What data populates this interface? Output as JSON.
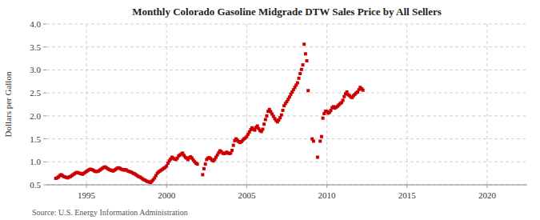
{
  "chart_data": {
    "type": "scatter",
    "title": "Monthly Colorado Gasoline Midgrade DTW Sales Price by All Sellers",
    "ylabel": "Dollars per Gallon",
    "annotation": "Source: U.S. Energy Information Administration",
    "color": "#cc0000",
    "marker": "square",
    "grid": true,
    "xlim": [
      1992.5,
      2022.5
    ],
    "ylim": [
      0.5,
      4.0
    ],
    "xticks": [
      1995,
      2000,
      2005,
      2010,
      2015,
      2020
    ],
    "yticks": [
      0.5,
      {
        "value": 1.0,
        "label": "1.0"
      },
      1.5,
      {
        "value": 2.0,
        "label": "2.0"
      },
      2.5,
      {
        "value": 3.0,
        "label": "3.0"
      },
      3.5,
      {
        "value": 4.0,
        "label": "4.0"
      }
    ],
    "x": [
      1993.083,
      1993.167,
      1993.25,
      1993.333,
      1993.417,
      1993.5,
      1993.583,
      1993.667,
      1993.75,
      1993.833,
      1993.917,
      1994.0,
      1994.083,
      1994.167,
      1994.25,
      1994.333,
      1994.417,
      1994.5,
      1994.583,
      1994.667,
      1994.75,
      1994.833,
      1994.917,
      1995.0,
      1995.083,
      1995.167,
      1995.25,
      1995.333,
      1995.417,
      1995.5,
      1995.583,
      1995.667,
      1995.75,
      1995.833,
      1995.917,
      1996.0,
      1996.083,
      1996.167,
      1996.25,
      1996.333,
      1996.417,
      1996.5,
      1996.583,
      1996.667,
      1996.75,
      1996.833,
      1996.917,
      1997.0,
      1997.083,
      1997.167,
      1997.25,
      1997.333,
      1997.417,
      1997.5,
      1997.583,
      1997.667,
      1997.75,
      1997.833,
      1997.917,
      1998.0,
      1998.083,
      1998.167,
      1998.25,
      1998.333,
      1998.417,
      1998.5,
      1998.583,
      1998.667,
      1998.75,
      1998.833,
      1998.917,
      1999.0,
      1999.083,
      1999.167,
      1999.25,
      1999.333,
      1999.417,
      1999.5,
      1999.583,
      1999.667,
      1999.75,
      1999.833,
      1999.917,
      2000.0,
      2000.083,
      2000.167,
      2000.25,
      2000.333,
      2000.417,
      2000.5,
      2000.583,
      2000.667,
      2000.75,
      2000.833,
      2000.917,
      2001.0,
      2001.083,
      2001.167,
      2001.25,
      2001.333,
      2001.417,
      2001.5,
      2001.583,
      2001.667,
      2001.75,
      2001.833,
      2001.917,
      2002.25,
      2002.333,
      2002.417,
      2002.5,
      2002.583,
      2002.667,
      2002.75,
      2002.833,
      2002.917,
      2003.0,
      2003.083,
      2003.167,
      2003.25,
      2003.333,
      2003.417,
      2003.5,
      2003.583,
      2003.667,
      2003.75,
      2003.833,
      2003.917,
      2004.0,
      2004.083,
      2004.167,
      2004.25,
      2004.333,
      2004.417,
      2004.5,
      2004.583,
      2004.667,
      2004.75,
      2004.833,
      2004.917,
      2005.0,
      2005.083,
      2005.167,
      2005.25,
      2005.333,
      2005.417,
      2005.5,
      2005.583,
      2005.667,
      2005.75,
      2005.833,
      2005.917,
      2006.0,
      2006.083,
      2006.167,
      2006.25,
      2006.333,
      2006.417,
      2006.5,
      2006.583,
      2006.667,
      2006.75,
      2006.833,
      2006.917,
      2007.0,
      2007.083,
      2007.167,
      2007.25,
      2007.333,
      2007.417,
      2007.5,
      2007.583,
      2007.667,
      2007.75,
      2007.833,
      2007.917,
      2008.0,
      2008.083,
      2008.167,
      2008.25,
      2008.333,
      2008.417,
      2008.5,
      2008.583,
      2008.667,
      2008.75,
      2008.833,
      2009.083,
      2009.167,
      2009.417,
      2009.583,
      2009.667,
      2009.75,
      2009.833,
      2009.917,
      2010.0,
      2010.083,
      2010.167,
      2010.25,
      2010.333,
      2010.417,
      2010.5,
      2010.583,
      2010.667,
      2010.75,
      2010.833,
      2010.917,
      2011.0,
      2011.083,
      2011.167,
      2011.25,
      2011.333,
      2011.417,
      2011.5,
      2011.583,
      2011.667,
      2011.75,
      2011.833,
      2011.917,
      2012.0,
      2012.083,
      2012.167,
      2012.25
    ],
    "values": [
      0.64,
      0.65,
      0.67,
      0.7,
      0.72,
      0.7,
      0.68,
      0.67,
      0.66,
      0.65,
      0.67,
      0.68,
      0.7,
      0.72,
      0.74,
      0.76,
      0.77,
      0.76,
      0.75,
      0.74,
      0.73,
      0.75,
      0.77,
      0.79,
      0.81,
      0.83,
      0.84,
      0.83,
      0.82,
      0.8,
      0.79,
      0.79,
      0.8,
      0.82,
      0.84,
      0.86,
      0.88,
      0.89,
      0.87,
      0.85,
      0.83,
      0.82,
      0.81,
      0.8,
      0.82,
      0.84,
      0.86,
      0.87,
      0.86,
      0.84,
      0.83,
      0.82,
      0.83,
      0.82,
      0.8,
      0.79,
      0.78,
      0.77,
      0.75,
      0.74,
      0.72,
      0.7,
      0.68,
      0.67,
      0.65,
      0.63,
      0.61,
      0.6,
      0.58,
      0.57,
      0.56,
      0.55,
      0.58,
      0.61,
      0.65,
      0.7,
      0.75,
      0.78,
      0.8,
      0.82,
      0.84,
      0.86,
      0.88,
      0.91,
      0.97,
      1.02,
      1.06,
      1.1,
      1.08,
      1.06,
      1.05,
      1.08,
      1.13,
      1.15,
      1.17,
      1.19,
      1.14,
      1.1,
      1.08,
      1.05,
      1.09,
      1.11,
      1.08,
      1.04,
      1.0,
      0.97,
      0.95,
      0.72,
      0.85,
      0.95,
      1.05,
      1.08,
      1.09,
      1.07,
      1.04,
      1.02,
      1.05,
      1.1,
      1.15,
      1.2,
      1.24,
      1.22,
      1.19,
      1.18,
      1.19,
      1.21,
      1.19,
      1.18,
      1.19,
      1.25,
      1.36,
      1.46,
      1.5,
      1.47,
      1.44,
      1.42,
      1.44,
      1.47,
      1.5,
      1.52,
      1.55,
      1.6,
      1.65,
      1.7,
      1.74,
      1.71,
      1.69,
      1.75,
      1.78,
      1.72,
      1.68,
      1.66,
      1.71,
      1.82,
      1.92,
      2.0,
      2.1,
      2.14,
      2.09,
      2.04,
      1.99,
      1.94,
      1.9,
      1.87,
      1.91,
      1.96,
      2.02,
      2.12,
      2.22,
      2.27,
      2.31,
      2.36,
      2.41,
      2.47,
      2.52,
      2.57,
      2.62,
      2.67,
      2.72,
      2.82,
      2.92,
      3.01,
      3.11,
      3.56,
      3.35,
      3.2,
      2.55,
      1.5,
      1.45,
      1.1,
      1.45,
      1.55,
      1.95,
      2.05,
      2.1,
      2.1,
      2.06,
      2.08,
      2.12,
      2.18,
      2.2,
      2.17,
      2.19,
      2.21,
      2.24,
      2.27,
      2.29,
      2.34,
      2.42,
      2.48,
      2.52,
      2.46,
      2.44,
      2.41,
      2.4,
      2.44,
      2.47,
      2.5,
      2.52,
      2.57,
      2.62,
      2.59,
      2.56
    ]
  }
}
